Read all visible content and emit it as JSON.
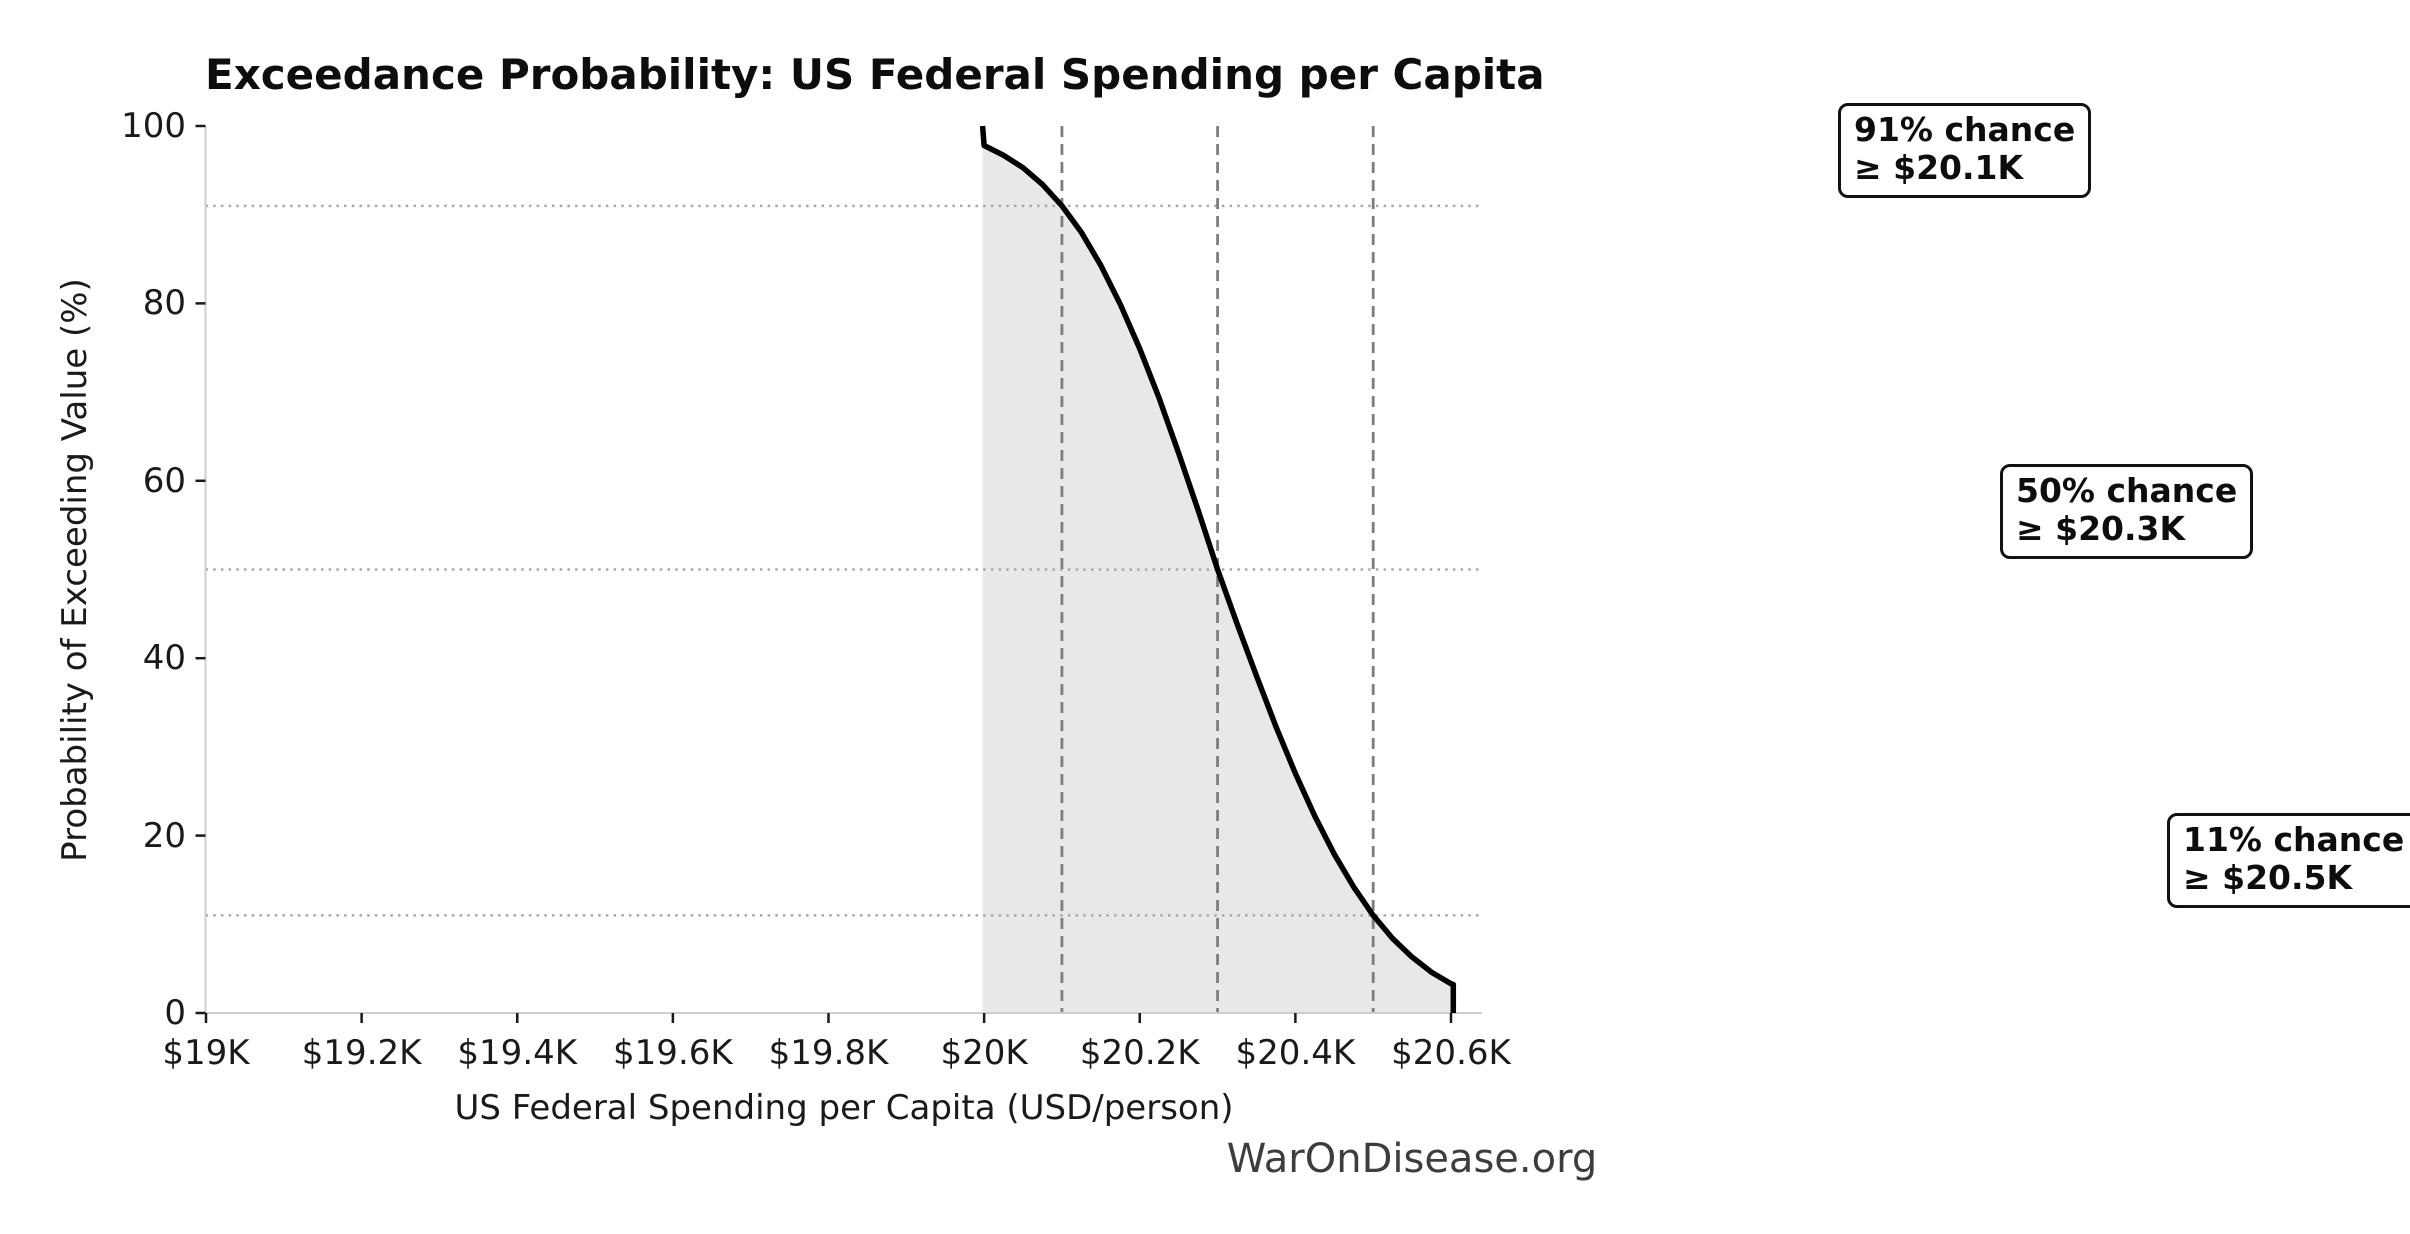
{
  "title": "Exceedance Probability: US Federal Spending per Capita",
  "footer": "WarOnDisease.org",
  "chart_data": {
    "type": "line",
    "title": "Exceedance Probability: US Federal Spending per Capita",
    "xlabel": "US Federal Spending per Capita (USD/person)",
    "ylabel": "Probability of Exceeding Value (%)",
    "xlim_thousands_usd": [
      19.0,
      20.64
    ],
    "ylim_percent": [
      0,
      100
    ],
    "grid": "reference lines only",
    "legend": "none",
    "x_ticks": [
      {
        "value": 19.0,
        "label": "$19K"
      },
      {
        "value": 19.2,
        "label": "$19.2K"
      },
      {
        "value": 19.4,
        "label": "$19.4K"
      },
      {
        "value": 19.6,
        "label": "$19.6K"
      },
      {
        "value": 19.8,
        "label": "$19.8K"
      },
      {
        "value": 20.0,
        "label": "$20K"
      },
      {
        "value": 20.2,
        "label": "$20.2K"
      },
      {
        "value": 20.4,
        "label": "$20.4K"
      },
      {
        "value": 20.6,
        "label": "$20.6K"
      }
    ],
    "y_ticks": [
      {
        "value": 0,
        "label": "0"
      },
      {
        "value": 20,
        "label": "20"
      },
      {
        "value": 40,
        "label": "40"
      },
      {
        "value": 60,
        "label": "60"
      },
      {
        "value": 80,
        "label": "80"
      },
      {
        "value": 100,
        "label": "100"
      }
    ],
    "curve": [
      [
        19.998,
        100.0
      ],
      [
        20.0,
        97.8
      ],
      [
        20.025,
        96.7
      ],
      [
        20.05,
        95.3
      ],
      [
        20.075,
        93.4
      ],
      [
        20.1,
        91.0
      ],
      [
        20.125,
        88.0
      ],
      [
        20.15,
        84.3
      ],
      [
        20.175,
        79.9
      ],
      [
        20.2,
        74.9
      ],
      [
        20.225,
        69.3
      ],
      [
        20.25,
        63.1
      ],
      [
        20.275,
        56.7
      ],
      [
        20.3,
        50.0
      ],
      [
        20.325,
        43.9
      ],
      [
        20.35,
        38.0
      ],
      [
        20.375,
        32.3
      ],
      [
        20.4,
        27.0
      ],
      [
        20.425,
        22.2
      ],
      [
        20.45,
        17.9
      ],
      [
        20.475,
        14.2
      ],
      [
        20.5,
        11.0
      ],
      [
        20.525,
        8.4
      ],
      [
        20.55,
        6.3
      ],
      [
        20.575,
        4.6
      ],
      [
        20.6,
        3.3
      ],
      [
        20.603,
        3.2
      ],
      [
        20.603,
        0.0
      ]
    ],
    "line_color": "#000000",
    "fill_color": "#e8e8e8",
    "reference_vlines": {
      "values": [
        20.1,
        20.3,
        20.5
      ],
      "style": "dashed",
      "color": "#7d7d7d"
    },
    "reference_hlines": {
      "values": [
        91,
        50,
        11
      ],
      "style": "dotted",
      "color": "#a8a8a8"
    },
    "spine_color": "#cfcfcf",
    "tick_color": "#1a1a1a",
    "annotations": [
      {
        "line1": "91% chance",
        "line2": "≥ $20.1K",
        "probability_percent": 91,
        "threshold": "$20.1K"
      },
      {
        "line1": "50% chance",
        "line2": "≥ $20.3K",
        "probability_percent": 50,
        "threshold": "$20.3K"
      },
      {
        "line1": "11% chance",
        "line2": "≥ $20.5K",
        "probability_percent": 11,
        "threshold": "$20.5K"
      }
    ]
  }
}
